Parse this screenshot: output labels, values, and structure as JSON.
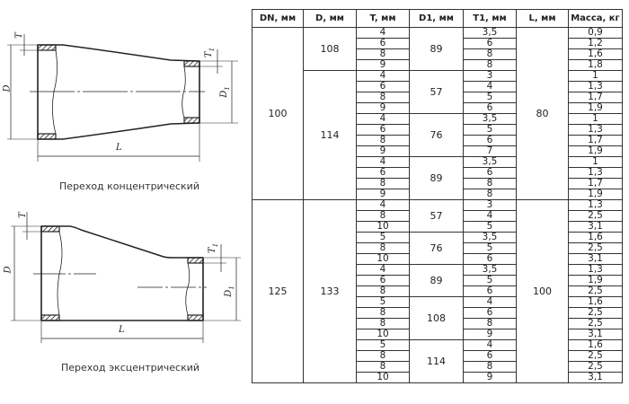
{
  "drawings": {
    "concentric": {
      "caption": "Переход концентрический",
      "labels": {
        "D": "D",
        "D1": "D",
        "D1_sub": "1",
        "T": "T",
        "T1": "T",
        "T1_sub": "1",
        "L": "L"
      }
    },
    "eccentric": {
      "caption": "Переход эксцентрический",
      "labels": {
        "D": "D",
        "D1": "D",
        "D1_sub": "1",
        "T": "T",
        "T1": "T",
        "T1_sub": "1",
        "L": "L"
      }
    }
  },
  "table": {
    "headers": [
      "DN, мм",
      "D, мм",
      "T, мм",
      "D1, мм",
      "T1, мм",
      "L, мм",
      "Масса, кг"
    ],
    "groups": [
      {
        "dn": "100",
        "l": "80",
        "d_groups": [
          {
            "d": "108",
            "d1_groups": [
              {
                "d1": "89",
                "rows": [
                  [
                    "4",
                    "3,5",
                    "0,9"
                  ],
                  [
                    "6",
                    "6",
                    "1,2"
                  ],
                  [
                    "8",
                    "8",
                    "1,6"
                  ],
                  [
                    "9",
                    "8",
                    "1,8"
                  ]
                ]
              }
            ]
          },
          {
            "d": "114",
            "d1_groups": [
              {
                "d1": "57",
                "rows": [
                  [
                    "4",
                    "3",
                    "1"
                  ],
                  [
                    "6",
                    "4",
                    "1,3"
                  ],
                  [
                    "8",
                    "5",
                    "1,7"
                  ],
                  [
                    "9",
                    "6",
                    "1,9"
                  ]
                ]
              },
              {
                "d1": "76",
                "rows": [
                  [
                    "4",
                    "3,5",
                    "1"
                  ],
                  [
                    "6",
                    "5",
                    "1,3"
                  ],
                  [
                    "8",
                    "6",
                    "1,7"
                  ],
                  [
                    "9",
                    "7",
                    "1,9"
                  ]
                ]
              },
              {
                "d1": "89",
                "rows": [
                  [
                    "4",
                    "3,5",
                    "1"
                  ],
                  [
                    "6",
                    "6",
                    "1,3"
                  ],
                  [
                    "8",
                    "8",
                    "1,7"
                  ],
                  [
                    "9",
                    "8",
                    "1,9"
                  ]
                ]
              }
            ]
          }
        ]
      },
      {
        "dn": "125",
        "l": "100",
        "d_groups": [
          {
            "d": "133",
            "d1_groups": [
              {
                "d1": "57",
                "rows": [
                  [
                    "4",
                    "3",
                    "1,3"
                  ],
                  [
                    "8",
                    "4",
                    "2,5"
                  ],
                  [
                    "10",
                    "5",
                    "3,1"
                  ]
                ]
              },
              {
                "d1": "76",
                "rows": [
                  [
                    "5",
                    "3,5",
                    "1,6"
                  ],
                  [
                    "8",
                    "5",
                    "2,5"
                  ],
                  [
                    "10",
                    "6",
                    "3,1"
                  ]
                ]
              },
              {
                "d1": "89",
                "rows": [
                  [
                    "4",
                    "3,5",
                    "1,3"
                  ],
                  [
                    "6",
                    "5",
                    "1,9"
                  ],
                  [
                    "8",
                    "6",
                    "2,5"
                  ]
                ]
              },
              {
                "d1": "108",
                "rows": [
                  [
                    "5",
                    "4",
                    "1,6"
                  ],
                  [
                    "8",
                    "6",
                    "2,5"
                  ],
                  [
                    "8",
                    "8",
                    "2,5"
                  ],
                  [
                    "10",
                    "9",
                    "3,1"
                  ]
                ]
              },
              {
                "d1": "114",
                "rows": [
                  [
                    "5",
                    "4",
                    "1,6"
                  ],
                  [
                    "8",
                    "6",
                    "2,5"
                  ],
                  [
                    "8",
                    "8",
                    "2,5"
                  ],
                  [
                    "10",
                    "9",
                    "3,1"
                  ]
                ]
              }
            ]
          }
        ]
      }
    ]
  }
}
